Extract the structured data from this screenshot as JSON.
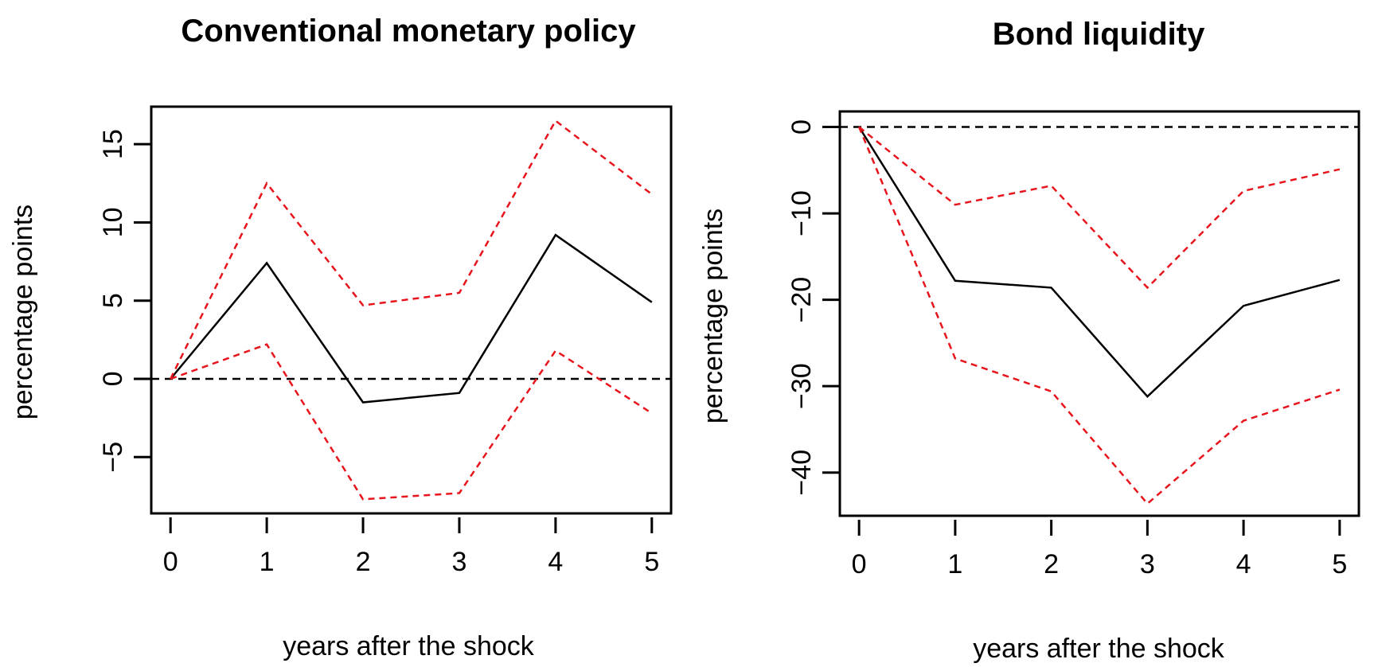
{
  "chart_data": [
    {
      "type": "line",
      "title": "Conventional monetary policy",
      "xlabel": "years after the shock",
      "ylabel": "percentage points",
      "x": [
        0,
        1,
        2,
        3,
        4,
        5
      ],
      "xticks": [
        0,
        1,
        2,
        3,
        4,
        5
      ],
      "yticks": [
        -5,
        0,
        5,
        10,
        15
      ],
      "xlim": [
        -0.2,
        5.2
      ],
      "ylim": [
        -8.6,
        17.4
      ],
      "reference_line": {
        "y": 0,
        "style": "dashed",
        "color": "#000000"
      },
      "series": [
        {
          "role": "estimate",
          "values": [
            0,
            7.4,
            -1.5,
            -0.9,
            9.2,
            4.9
          ],
          "color": "#000000",
          "style": "solid"
        },
        {
          "role": "upper_band",
          "values": [
            0,
            12.5,
            4.7,
            5.5,
            16.5,
            11.8
          ],
          "color": "#e8141c",
          "style": "dashed"
        },
        {
          "role": "lower_band",
          "values": [
            0,
            2.2,
            -7.7,
            -7.3,
            1.8,
            -2.2
          ],
          "color": "#e8141c",
          "style": "dashed"
        }
      ],
      "grid": false,
      "legend": "none"
    },
    {
      "type": "line",
      "title": "Bond liquidity",
      "xlabel": "years after the shock",
      "ylabel": "percentage points",
      "x": [
        0,
        1,
        2,
        3,
        4,
        5
      ],
      "xticks": [
        0,
        1,
        2,
        3,
        4,
        5
      ],
      "yticks": [
        -40,
        -30,
        -20,
        -10,
        0
      ],
      "xlim": [
        -0.2,
        5.2
      ],
      "ylim": [
        -45,
        1.8
      ],
      "reference_line": {
        "y": 0,
        "style": "dashed",
        "color": "#000000"
      },
      "series": [
        {
          "role": "estimate",
          "values": [
            0,
            -17.8,
            -18.6,
            -31.2,
            -20.7,
            -17.7
          ],
          "color": "#000000",
          "style": "solid"
        },
        {
          "role": "upper_band",
          "values": [
            0,
            -9.0,
            -6.8,
            -18.6,
            -7.4,
            -4.9
          ],
          "color": "#e8141c",
          "style": "dashed"
        },
        {
          "role": "lower_band",
          "values": [
            0,
            -26.8,
            -30.6,
            -43.6,
            -34.0,
            -30.4
          ],
          "color": "#e8141c",
          "style": "dashed"
        }
      ],
      "grid": false,
      "legend": "none"
    }
  ]
}
